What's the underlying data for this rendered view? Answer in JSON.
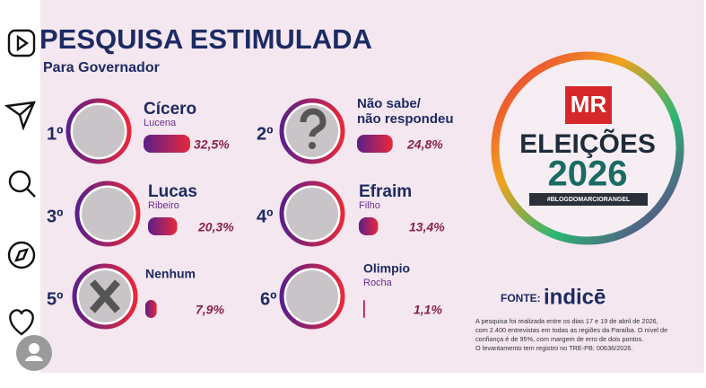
{
  "post": {
    "title": "PESQUISA ESTIMULADA",
    "subtitle": "Para Governador",
    "candidates": [
      {
        "rank": "1º",
        "name": "Cícero",
        "surname": "Lucena",
        "value": 32.5,
        "value_label": "32,5%"
      },
      {
        "rank": "2º",
        "name": "Não sabe/",
        "surname": "não respondeu",
        "value": 24.8,
        "value_label": "24,8%"
      },
      {
        "rank": "3º",
        "name": "Lucas",
        "surname": "Ribeiro",
        "value": 20.3,
        "value_label": "20,3%"
      },
      {
        "rank": "4º",
        "name": "Efraim",
        "surname": "Filho",
        "value": 13.4,
        "value_label": "13,4%"
      },
      {
        "rank": "5º",
        "name": "Nenhum",
        "value": 7.9,
        "value_label": "7,9%"
      },
      {
        "rank": "6º",
        "name": "Olimpio",
        "surname": "Rocha",
        "value": 1.1,
        "value_label": "1,1%"
      }
    ],
    "logo": {
      "brand": "MR",
      "line1": "ELEIÇÕES",
      "line2": "2026",
      "tag": "#BLOGDOMARCIORANGEL"
    },
    "source_label": "FONTE:",
    "source": "indicē",
    "note_lines": [
      "A pesquisa foi realizada entre os dias 17 e 19 de abril de 2026,",
      "com 2.400 entrevistas em todas as regiões da Paraíba. O nível de",
      "confiança é de 95%, com margem de erro de dois pontos.",
      "O levantamento tem registro no TRE-PB: 00636/2026."
    ]
  }
}
